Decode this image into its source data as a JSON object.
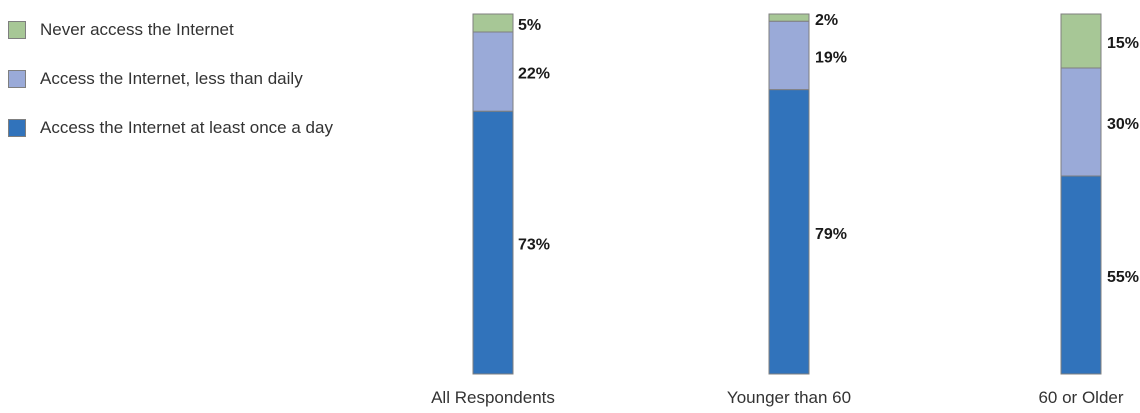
{
  "chart_data": {
    "type": "bar",
    "stacked": true,
    "orientation": "vertical",
    "categories": [
      "All Respondents",
      "Younger than 60",
      "60 or Older"
    ],
    "series": [
      {
        "name": "Access the Internet at least once a day",
        "values": [
          73,
          79,
          55
        ],
        "labels": [
          "73%",
          "79%",
          "55%"
        ],
        "color": "#3173bb"
      },
      {
        "name": "Access the Internet, less than daily",
        "values": [
          22,
          19,
          30
        ],
        "labels": [
          "22%",
          "19%",
          "30%"
        ],
        "color": "#9aaad8"
      },
      {
        "name": "Never access the Internet",
        "values": [
          5,
          2,
          15
        ],
        "labels": [
          "5%",
          "2%",
          "15%"
        ],
        "color": "#a7c796"
      }
    ],
    "ylim": [
      0,
      100
    ],
    "legend_position": "top-left",
    "grid": false
  },
  "legend": [
    {
      "label": "Never access the Internet",
      "color": "#a7c796"
    },
    {
      "label": "Access the Internet, less than daily",
      "color": "#9aaad8"
    },
    {
      "label": "Access the Internet at least once a day",
      "color": "#3173bb"
    }
  ]
}
